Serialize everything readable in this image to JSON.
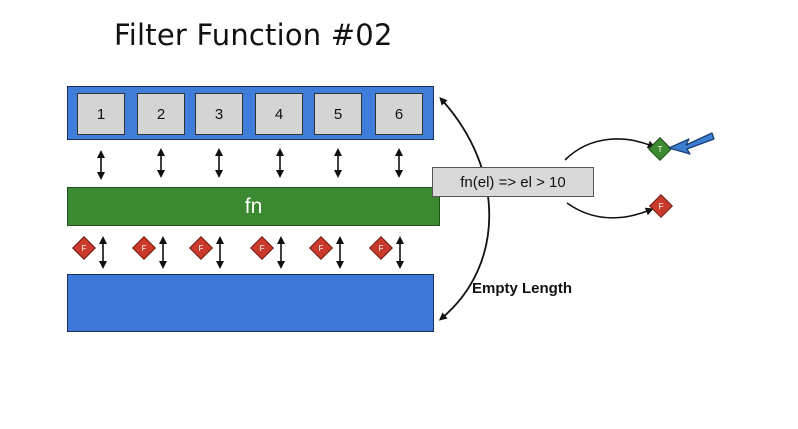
{
  "title": "Filter Function #02",
  "input_array": [
    "1",
    "2",
    "3",
    "4",
    "5",
    "6"
  ],
  "fn_block_label": "fn",
  "predicate_label": "fn(el) => el > 10",
  "result_label": "Empty Length",
  "true_marker": "T",
  "false_marker": "F",
  "element_results": [
    "F",
    "F",
    "F",
    "F",
    "F",
    "F"
  ],
  "colors": {
    "array": "#3f7ddb",
    "fn": "#3b8a31",
    "result": "#3c79db",
    "true_diamond": "#3b8a31",
    "false_diamond": "#c93a2a",
    "pointer_arrow": "#3a7fd1"
  },
  "icons": {
    "pointer": "blue-pointer-arrow-icon",
    "true": "green-diamond-icon",
    "false": "red-diamond-icon"
  }
}
